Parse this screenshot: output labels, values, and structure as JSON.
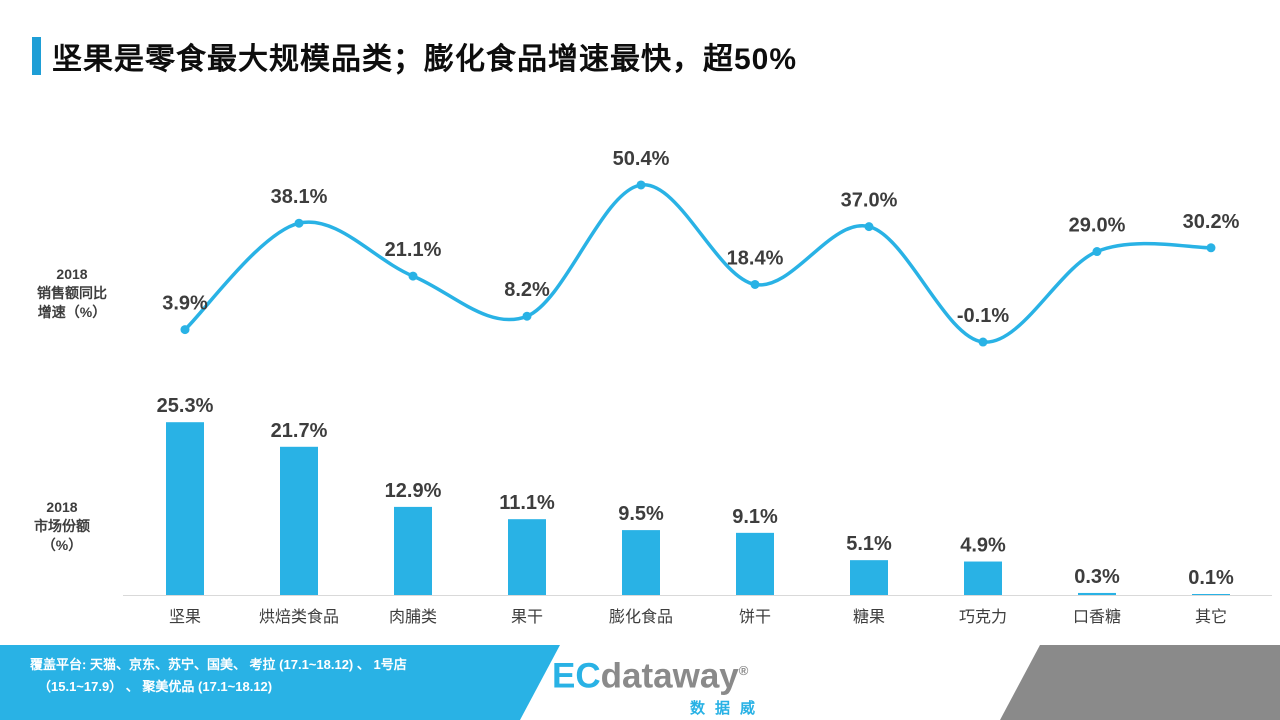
{
  "title": {
    "text": "坚果是零食最大规模品类；膨化食品增速最快，超50%"
  },
  "colors": {
    "accent": "#1e9ed6",
    "brand_blue": "#29b2e5",
    "footer_gray": "#8a8a8a",
    "data_label": "#3d3d3d",
    "category_label": "#3d3d3d",
    "axis_line": "#d9d9d9",
    "logo_gray": "#8a8a8a"
  },
  "chart_data": [
    {
      "type": "line",
      "name": "sales_growth_yoy_2018",
      "axis_label_lines": [
        "2018",
        "销售额同比",
        "增速（%）"
      ],
      "categories": [
        "坚果",
        "烘焙类食品",
        "肉脯类",
        "果干",
        "膨化食品",
        "饼干",
        "糖果",
        "巧克力",
        "口香糖",
        "其它"
      ],
      "values": [
        3.9,
        38.1,
        21.1,
        8.2,
        50.4,
        18.4,
        37.0,
        -0.1,
        29.0,
        30.2
      ],
      "labels": [
        "3.9%",
        "38.1%",
        "21.1%",
        "8.2%",
        "50.4%",
        "18.4%",
        "37.0%",
        "-0.1%",
        "29.0%",
        "30.2%"
      ],
      "color": "#29b2e5",
      "smooth": true,
      "ylim": [
        -5,
        55
      ],
      "grid": false,
      "legend": "none"
    },
    {
      "type": "bar",
      "name": "market_share_2018",
      "axis_label_lines": [
        "2018",
        "市场份额",
        "（%）"
      ],
      "categories": [
        "坚果",
        "烘焙类食品",
        "肉脯类",
        "果干",
        "膨化食品",
        "饼干",
        "糖果",
        "巧克力",
        "口香糖",
        "其它"
      ],
      "values": [
        25.3,
        21.7,
        12.9,
        11.1,
        9.5,
        9.1,
        5.1,
        4.9,
        0.3,
        0.1
      ],
      "labels": [
        "25.3%",
        "21.7%",
        "12.9%",
        "11.1%",
        "9.5%",
        "9.1%",
        "5.1%",
        "4.9%",
        "0.3%",
        "0.1%"
      ],
      "color": "#29b2e5",
      "ylim": [
        0,
        30
      ],
      "grid": false,
      "legend": "none"
    }
  ],
  "footer": {
    "coverage_line1": "覆盖平台: 天猫、京东、苏宁、国美、 考拉 (17.1~18.12) 、 1号店",
    "coverage_line2": "（15.1~17.9） 、 聚美优品 (17.1~18.12)",
    "logo": {
      "ec": "EC",
      "dataway": "dataway",
      "registered": "®",
      "chinese": "数据威"
    }
  }
}
